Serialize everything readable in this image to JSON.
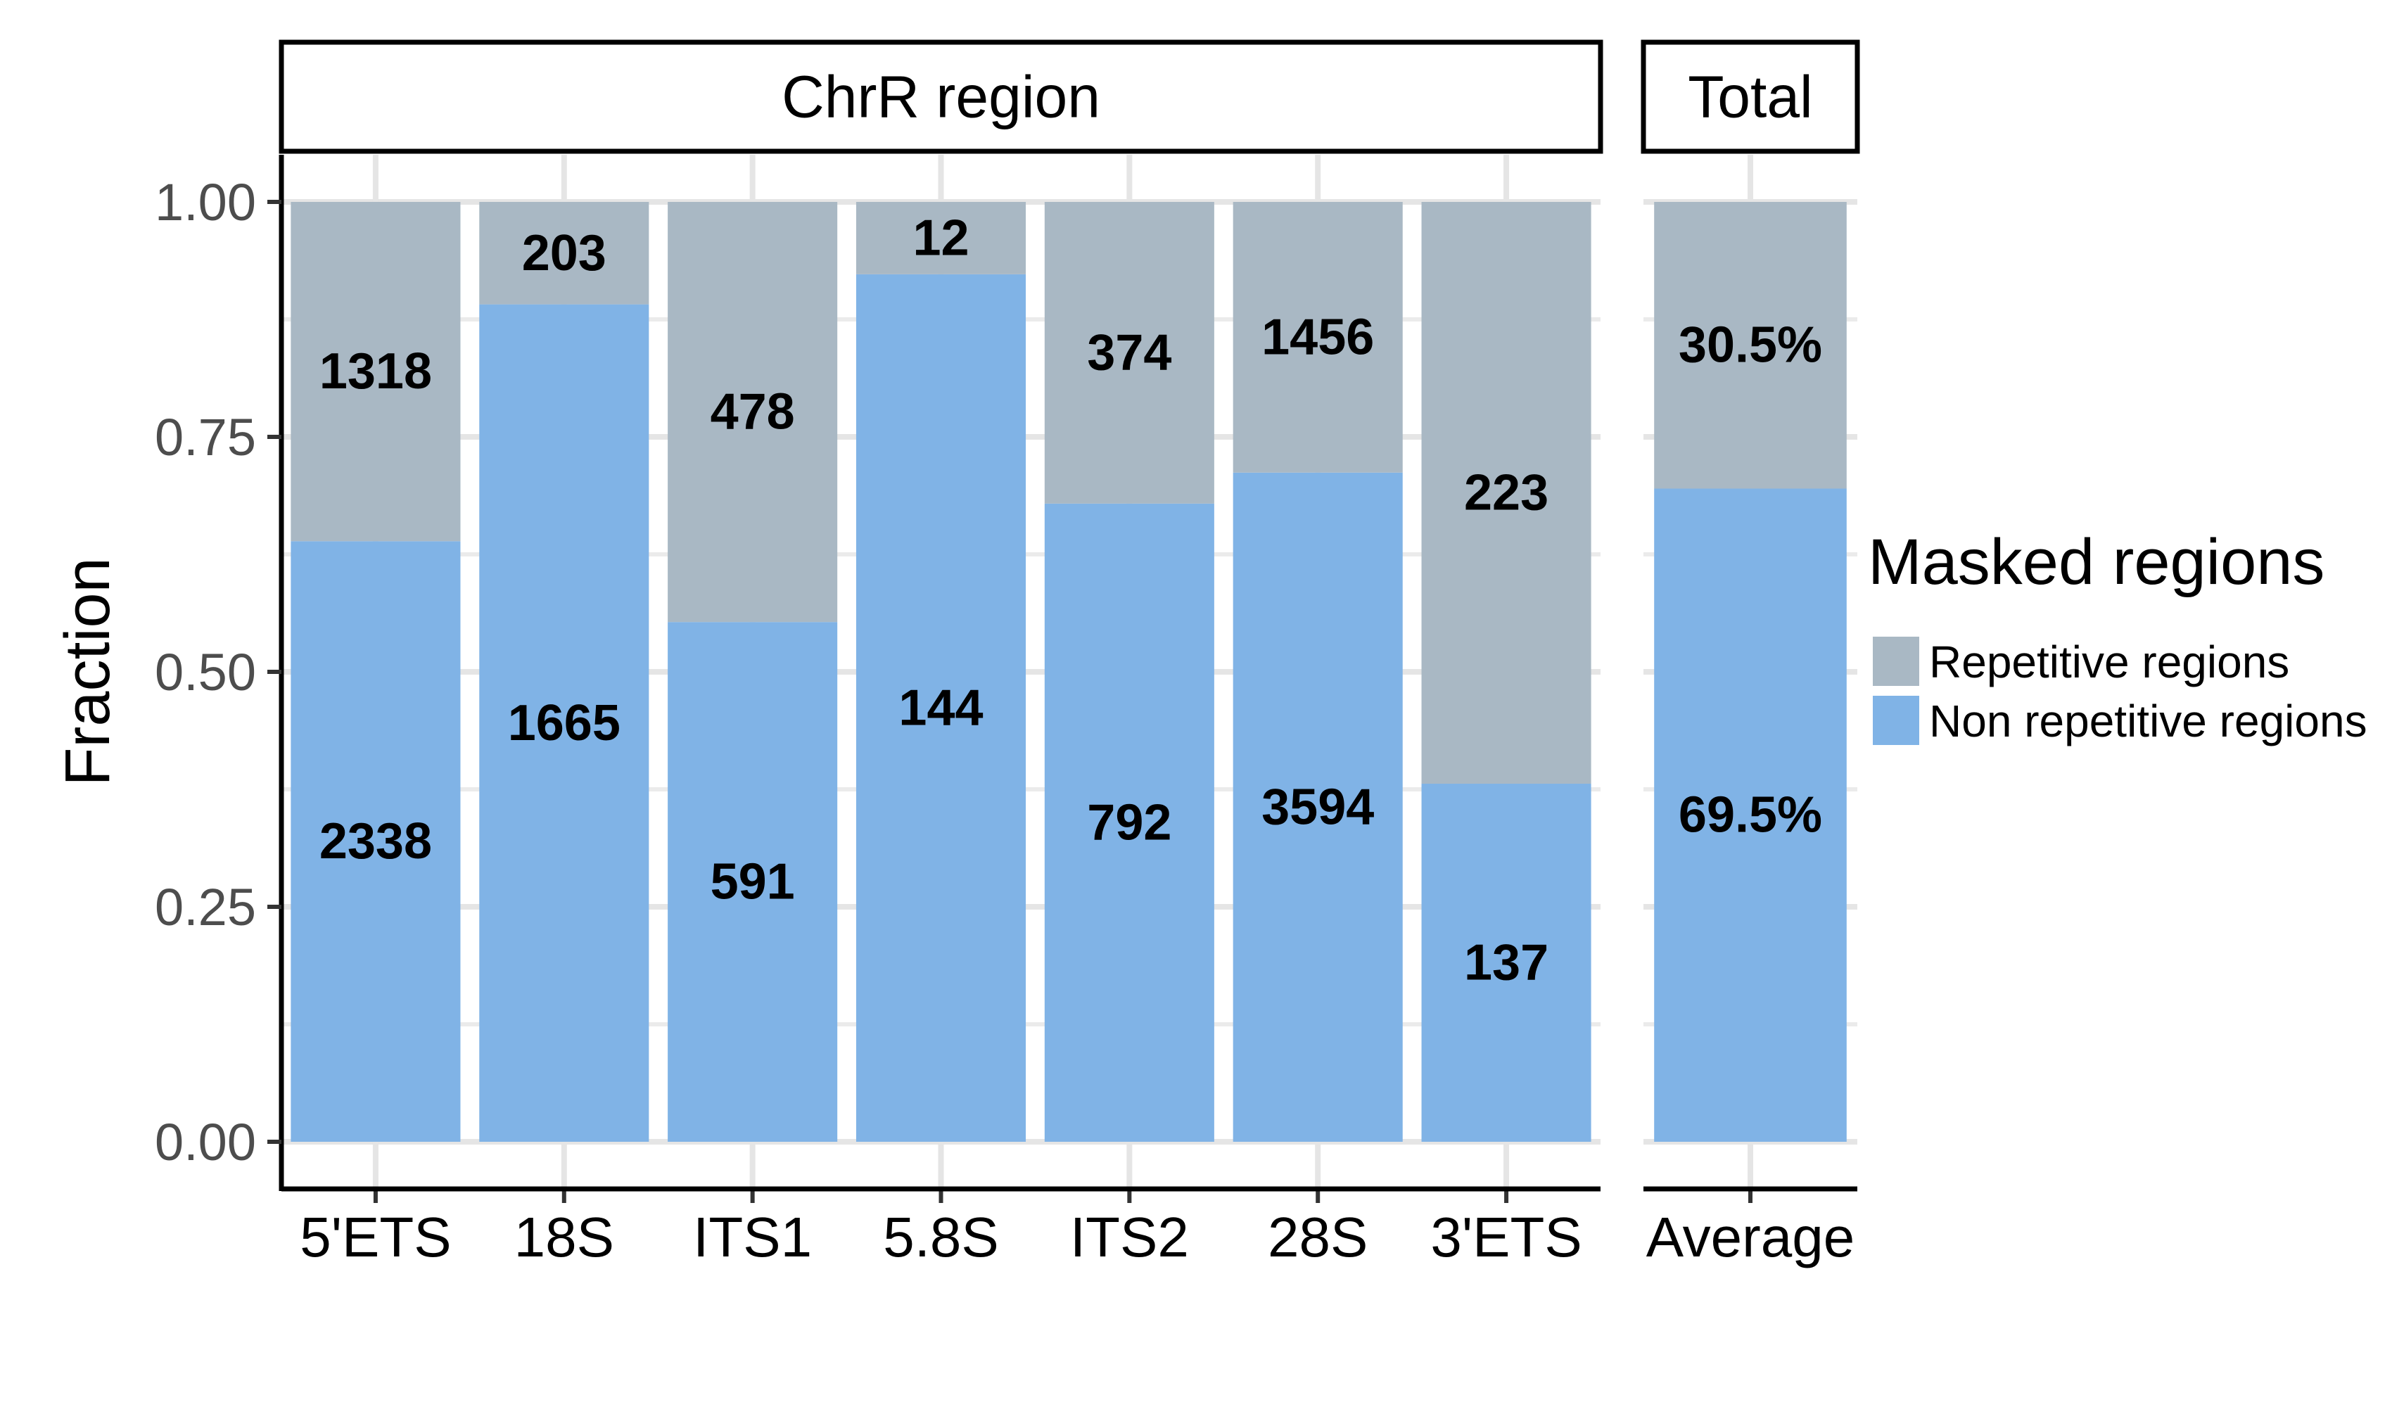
{
  "chart_data": {
    "type": "bar",
    "stacked": true,
    "ylabel": "Fraction",
    "ylim": [
      0,
      1
    ],
    "y_ticks": [
      "0.00",
      "0.25",
      "0.50",
      "0.75",
      "1.00"
    ],
    "grid": true,
    "legend": {
      "title": "Masked regions",
      "placement": "right",
      "items": [
        {
          "label": "Repetitive regions",
          "color": "#a9b8c4"
        },
        {
          "label": "Non repetitive regions",
          "color": "#80b3e6"
        }
      ]
    },
    "panels": [
      {
        "strip": "ChrR region",
        "categories": [
          "5'ETS",
          "18S",
          "ITS1",
          "5.8S",
          "ITS2",
          "28S",
          "3'ETS"
        ],
        "series": [
          {
            "name": "Non repetitive regions",
            "fractions": [
              0.639,
              0.891,
              0.553,
              0.923,
              0.679,
              0.712,
              0.381
            ],
            "labels": [
              "2338",
              "1665",
              "591",
              "144",
              "792",
              "3594",
              "137"
            ]
          },
          {
            "name": "Repetitive regions",
            "fractions": [
              0.361,
              0.109,
              0.447,
              0.077,
              0.321,
              0.288,
              0.619
            ],
            "labels": [
              "1318",
              "203",
              "478",
              "12",
              "374",
              "1456",
              "223"
            ]
          }
        ]
      },
      {
        "strip": "Total",
        "categories": [
          "Average"
        ],
        "series": [
          {
            "name": "Non repetitive regions",
            "fractions": [
              0.695
            ],
            "labels": [
              "69.5%"
            ]
          },
          {
            "name": "Repetitive regions",
            "fractions": [
              0.305
            ],
            "labels": [
              "30.5%"
            ]
          }
        ]
      }
    ]
  }
}
